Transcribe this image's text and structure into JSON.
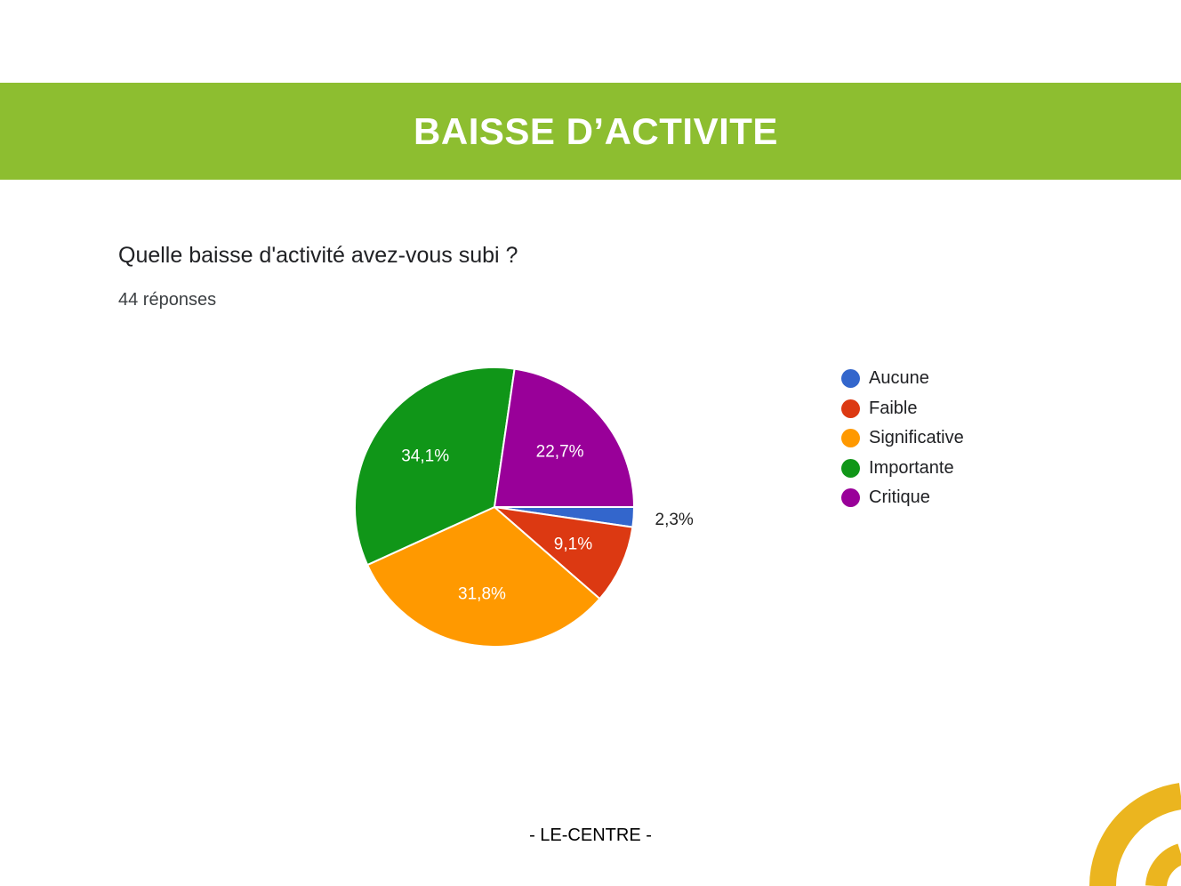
{
  "header": {
    "title": "BAISSE D’ACTIVITE",
    "color": "#8dbe30"
  },
  "question": {
    "title": "Quelle baisse d'activité avez-vous subi ?",
    "responses": "44 réponses"
  },
  "footer": {
    "text": "- LE-CENTRE -"
  },
  "decoration": {
    "color": "#ebb51f"
  },
  "chart_data": {
    "type": "pie",
    "categories": [
      "Aucune",
      "Faible",
      "Significative",
      "Importante",
      "Critique"
    ],
    "values": [
      2.3,
      9.1,
      31.8,
      34.1,
      22.7
    ],
    "labels": [
      "2,3%",
      "9,1%",
      "31,8%",
      "34,1%",
      "22,7%"
    ],
    "colors": [
      "#3366cc",
      "#dc3912",
      "#ff9900",
      "#109618",
      "#990099"
    ],
    "legend": "right"
  }
}
